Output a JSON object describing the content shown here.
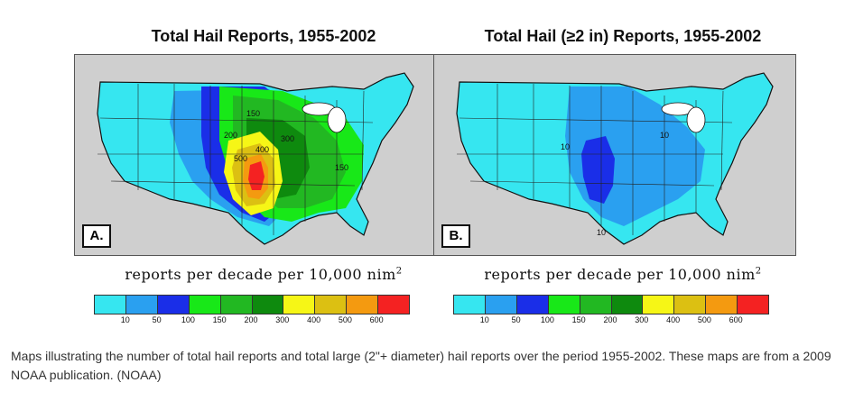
{
  "panels": [
    {
      "title": "Total Hail Reports, 1955-2002",
      "label": "A.",
      "contour_labels": [
        "200",
        "150",
        "300",
        "500",
        "400",
        "150"
      ]
    },
    {
      "title": "Total Hail (≥2 in) Reports, 1955-2002",
      "label": "B.",
      "contour_labels": [
        "10",
        "10",
        "10"
      ]
    }
  ],
  "units": {
    "text": "reports per decade per 10,000 nim",
    "superscript": "2"
  },
  "colorbar": {
    "colors": [
      "#36e6f0",
      "#2aa0f0",
      "#1a2ee8",
      "#18e818",
      "#22b822",
      "#0e8a0e",
      "#f6f616",
      "#dcc012",
      "#f49a10",
      "#f42222"
    ],
    "ticks": [
      "10",
      "50",
      "100",
      "150",
      "200",
      "300",
      "400",
      "500",
      "600"
    ]
  },
  "caption": "Maps illustrating the number of total hail reports and total large (2\"+ diameter) hail reports over the period 1955-2002. These maps are from a 2009 NOAA publication. (NOAA)"
}
